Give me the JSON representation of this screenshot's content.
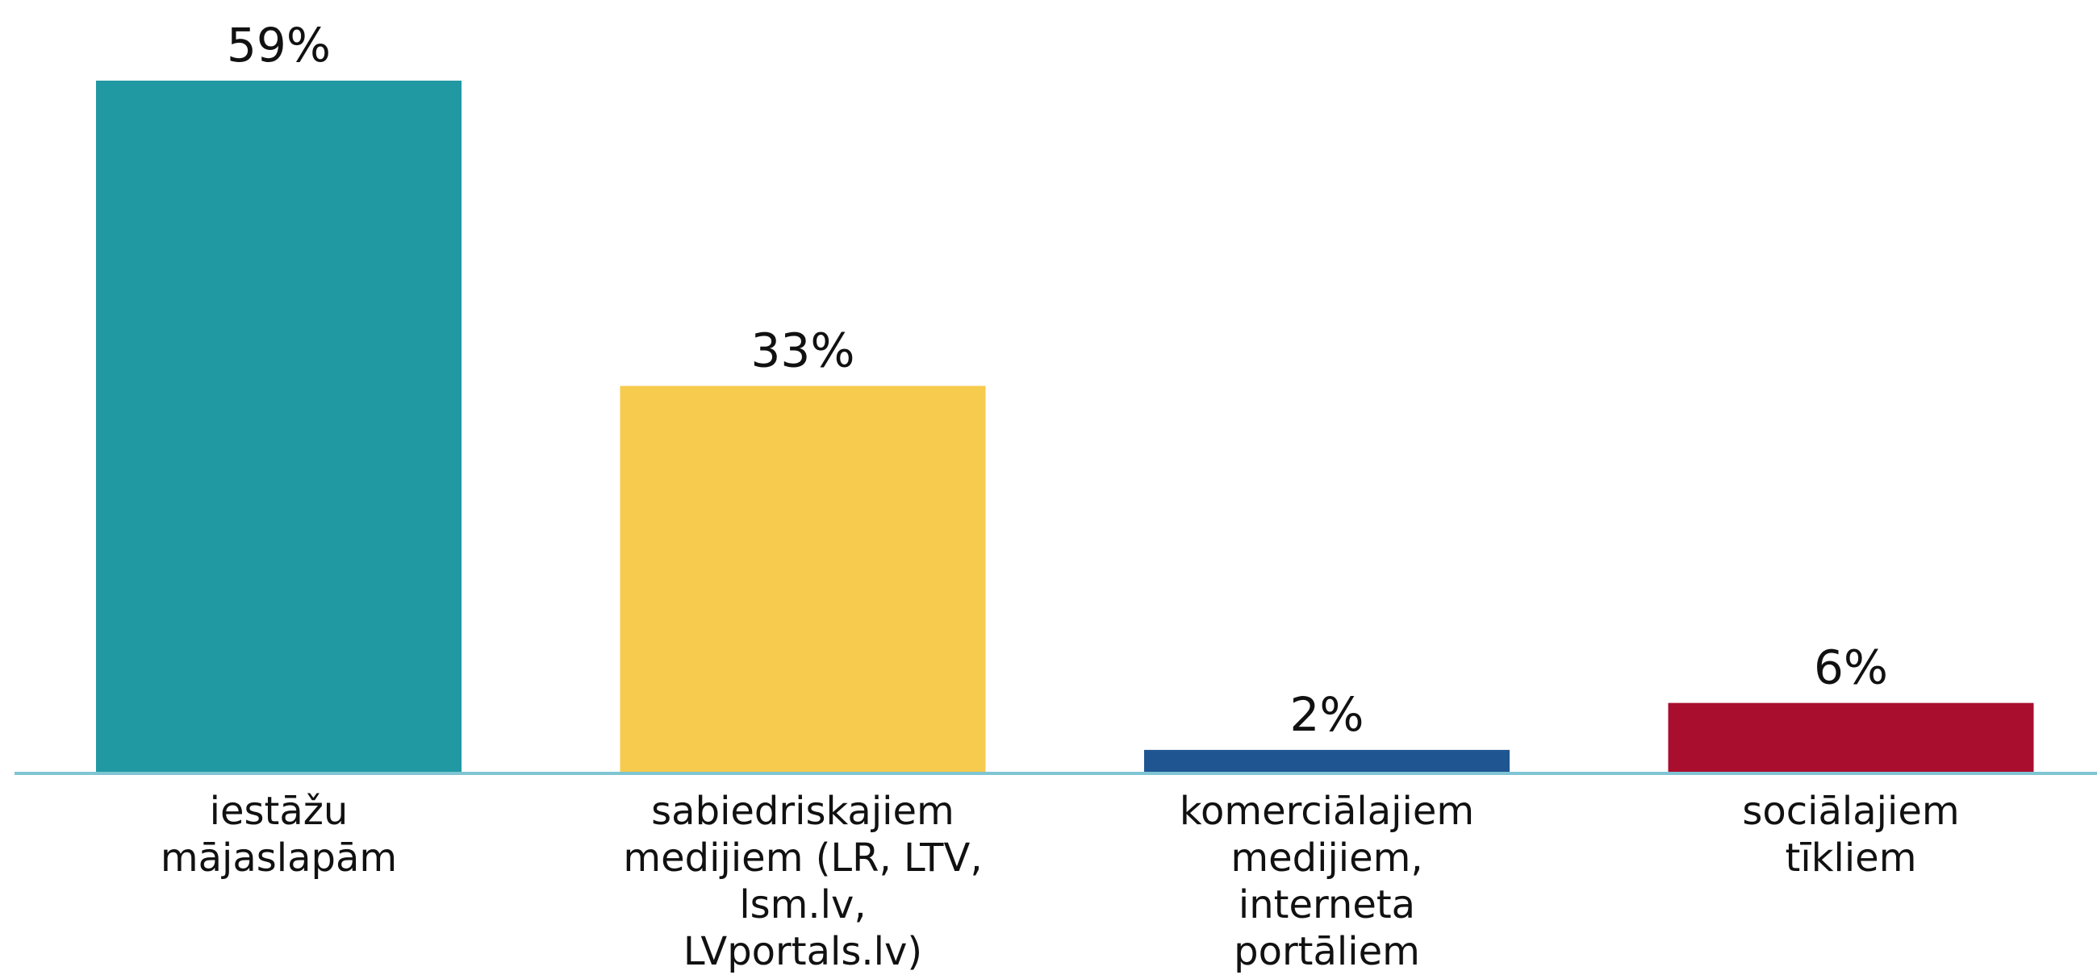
{
  "chart_data": {
    "type": "bar",
    "categories": [
      "iestāžu\nmājaslapām",
      "sabiedriskajiem\nmedijiem (LR, LTV,\nlsm.lv,\nLVportals.lv)",
      "komerciālajiem\nmedijiem,\ninterneta\nportāliem",
      "sociālajiem\ntīkliem"
    ],
    "values": [
      59,
      33,
      2,
      6
    ],
    "value_labels": [
      "59%",
      "33%",
      "2%",
      "6%"
    ],
    "colors": [
      "#2199a3",
      "#f7cb4d",
      "#1f5591",
      "#a90e2e"
    ]
  }
}
